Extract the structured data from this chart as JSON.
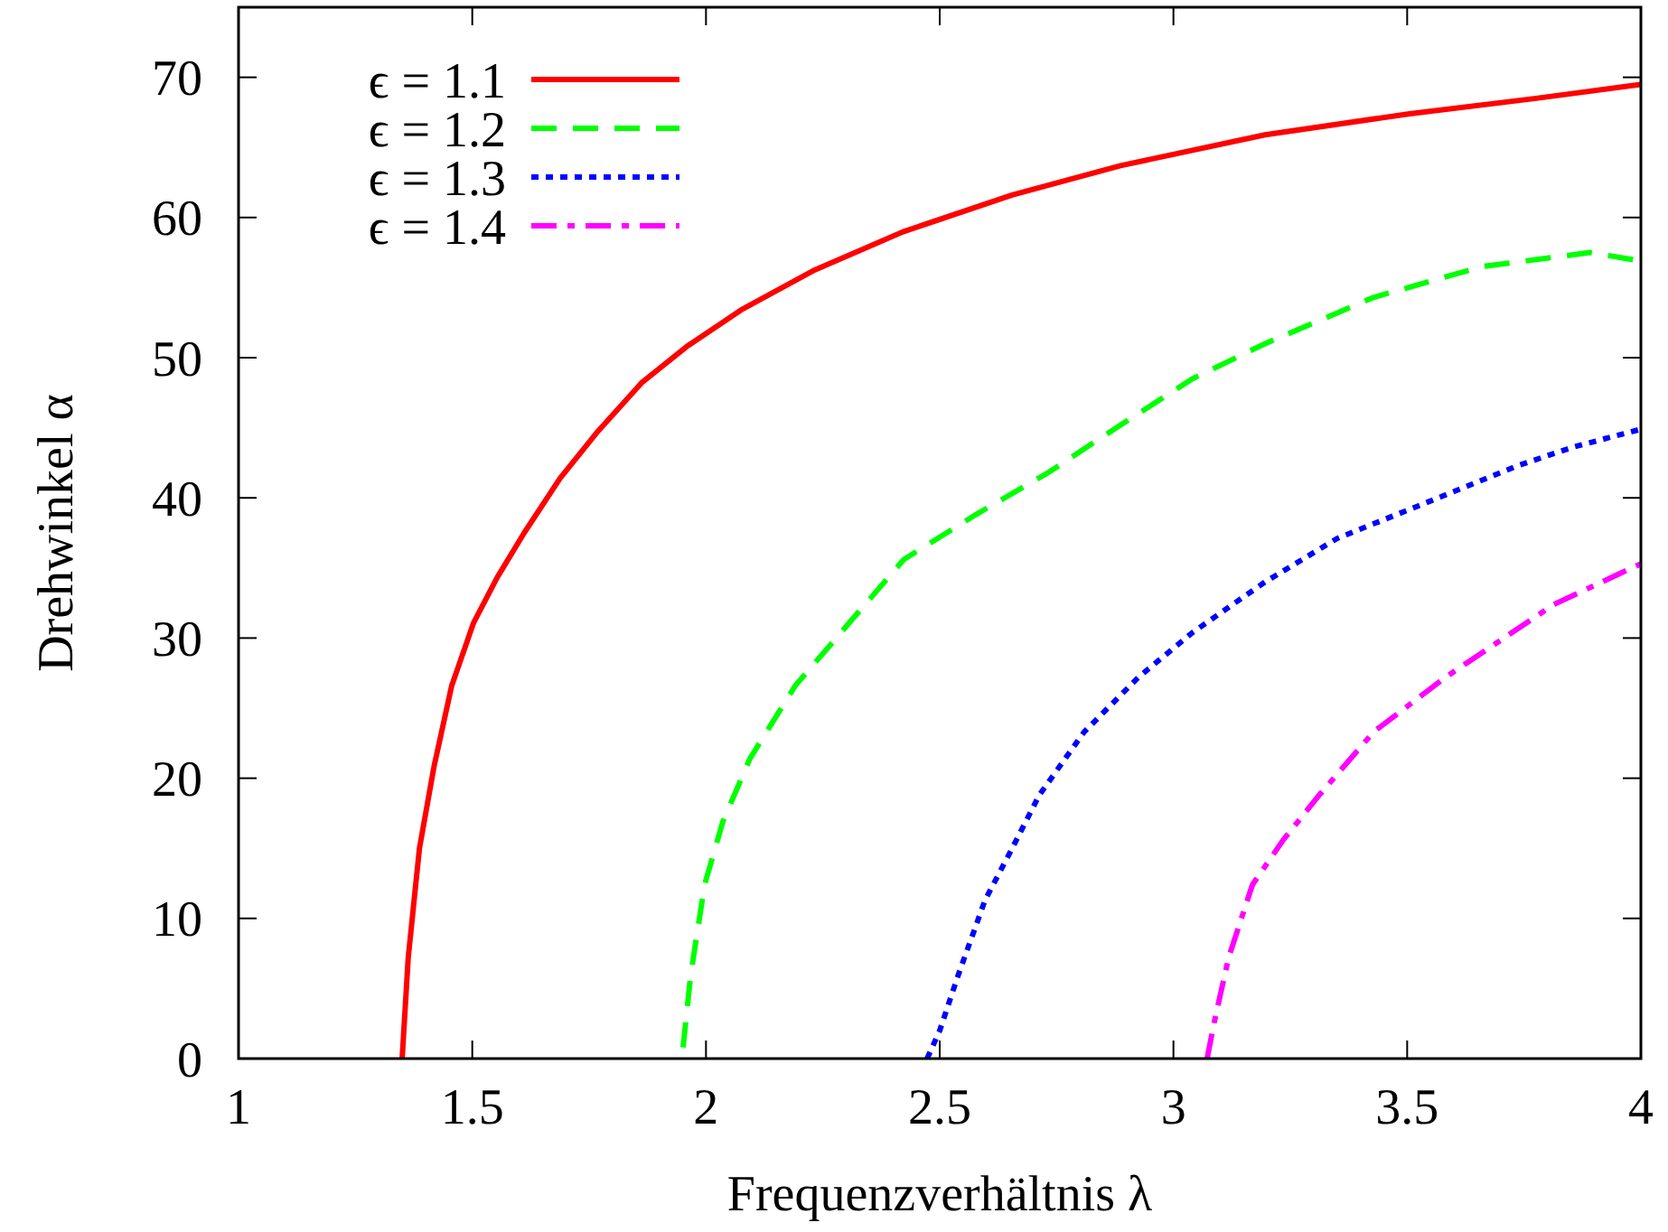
{
  "chart_data": {
    "type": "line",
    "xlabel": "Frequenzverhältnis λ",
    "ylabel": "Drehwinkel α",
    "xlim": [
      1,
      4
    ],
    "ylim": [
      0,
      75
    ],
    "xticks": [
      1,
      1.5,
      2,
      2.5,
      3,
      3.5,
      4
    ],
    "yticks": [
      0,
      10,
      20,
      30,
      40,
      50,
      60,
      70
    ],
    "legend": "top left",
    "grid": false,
    "marker": "none",
    "series": [
      {
        "name": "ϵ = 1.1",
        "color": "#ff0000",
        "line_style": "solid",
        "x": [
          1.35,
          1.363,
          1.387,
          1.418,
          1.456,
          1.503,
          1.553,
          1.611,
          1.688,
          1.765,
          1.862,
          1.959,
          2.075,
          2.229,
          2.423,
          2.655,
          2.887,
          3.196,
          3.505,
          3.776,
          4.0
        ],
        "values": [
          0,
          7.2,
          15,
          20.8,
          26.6,
          31.1,
          34.3,
          37.5,
          41.4,
          44.6,
          48.2,
          50.8,
          53.4,
          56.2,
          59.0,
          61.6,
          63.7,
          65.9,
          67.4,
          68.5,
          69.5
        ]
      },
      {
        "name": "ϵ = 1.2",
        "color": "#00ff00",
        "line_style": "dashed",
        "x": [
          1.951,
          1.967,
          1.997,
          2.036,
          2.094,
          2.191,
          2.307,
          2.423,
          2.577,
          2.732,
          2.887,
          3.041,
          3.196,
          3.428,
          3.66,
          3.892,
          4.0
        ],
        "values": [
          0.8,
          5.9,
          12.4,
          16.9,
          21.4,
          26.6,
          31.1,
          35.6,
          38.8,
          41.8,
          45.2,
          48.5,
          51.0,
          54.3,
          56.5,
          57.5,
          56.9
        ]
      },
      {
        "name": "ϵ = 1.3",
        "color": "#0000ff",
        "line_style": "dotted",
        "x": [
          2.473,
          2.5,
          2.539,
          2.597,
          2.655,
          2.713,
          2.809,
          2.925,
          3.041,
          3.196,
          3.35,
          3.544,
          3.737,
          3.853,
          4.0
        ],
        "values": [
          0,
          2,
          5.9,
          11.3,
          15,
          18.8,
          23.3,
          27.2,
          30.4,
          34.0,
          37.1,
          39.7,
          42.3,
          43.6,
          44.9
        ]
      },
      {
        "name": "ϵ = 1.4",
        "color": "#ff00ff",
        "line_style": "dashdot",
        "x": [
          3.072,
          3.088,
          3.118,
          3.169,
          3.235,
          3.312,
          3.428,
          3.582,
          3.698,
          3.814,
          4.0
        ],
        "values": [
          0,
          2.7,
          7.2,
          12.4,
          15.6,
          18.8,
          23.3,
          27.2,
          29.8,
          32.4,
          35.3
        ]
      }
    ]
  }
}
